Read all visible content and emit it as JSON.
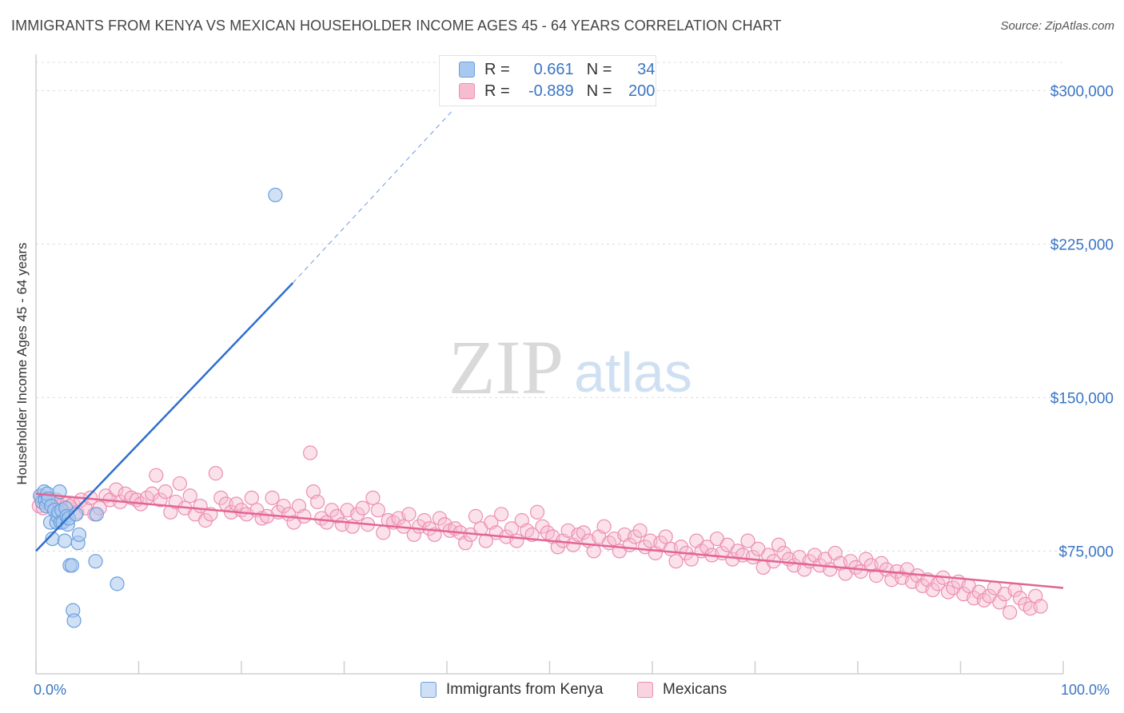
{
  "header": {
    "title": "IMMIGRANTS FROM KENYA VS MEXICAN HOUSEHOLDER INCOME AGES 45 - 64 YEARS CORRELATION CHART",
    "source": "Source: ZipAtlas.com"
  },
  "watermark": {
    "zip": "ZIP",
    "atlas": "atlas"
  },
  "legend": {
    "kenya": {
      "r_label": "R =",
      "r_value": "0.661",
      "n_label": "N =",
      "n_value": "34"
    },
    "mexicans": {
      "r_label": "R =",
      "r_value": "-0.889",
      "n_label": "N =",
      "n_value": "200"
    }
  },
  "colors": {
    "kenya_fill": "#a9c8ef",
    "kenya_stroke": "#6a9fdd",
    "kenya_line": "#2f6fce",
    "mexicans_fill": "#f6bdd0",
    "mexicans_stroke": "#ec8fb0",
    "mexicans_line": "#e36594",
    "axis_text": "#3a75c4"
  },
  "chart_data": {
    "type": "scatter",
    "xlabel": "",
    "ylabel": "Householder Income Ages 45 - 64 years",
    "xlim": [
      0,
      100
    ],
    "ylim": [
      15000,
      315000
    ],
    "x_tick_labels": [
      "0.0%",
      "100.0%"
    ],
    "y_ticks": [
      75000,
      150000,
      225000,
      300000
    ],
    "y_tick_labels": [
      "$75,000",
      "$150,000",
      "$225,000",
      "$300,000"
    ],
    "grid": "horizontal dashed",
    "series": [
      {
        "name": "Immigrants from Kenya",
        "points": [
          [
            0.4,
            102000
          ],
          [
            0.6,
            99000
          ],
          [
            0.8,
            104000
          ],
          [
            0.9,
            100000
          ],
          [
            1.0,
            97000
          ],
          [
            1.1,
            103000
          ],
          [
            1.2,
            100500
          ],
          [
            1.4,
            89000
          ],
          [
            1.5,
            97000
          ],
          [
            1.6,
            81000
          ],
          [
            1.8,
            95000
          ],
          [
            2.0,
            89000
          ],
          [
            2.1,
            92000
          ],
          [
            2.2,
            94000
          ],
          [
            2.3,
            104000
          ],
          [
            2.4,
            89000
          ],
          [
            2.5,
            95000
          ],
          [
            2.6,
            89000
          ],
          [
            2.8,
            80000
          ],
          [
            2.9,
            96000
          ],
          [
            3.0,
            92000
          ],
          [
            3.1,
            88000
          ],
          [
            3.2,
            91000
          ],
          [
            3.3,
            68000
          ],
          [
            3.5,
            68000
          ],
          [
            3.6,
            46000
          ],
          [
            3.7,
            41000
          ],
          [
            3.9,
            93000
          ],
          [
            4.1,
            79000
          ],
          [
            4.2,
            83000
          ],
          [
            5.8,
            70000
          ],
          [
            5.9,
            93000
          ],
          [
            7.9,
            59000
          ],
          [
            23.3,
            249000
          ]
        ],
        "trend": {
          "x0": 0,
          "y0": 75000,
          "x1": 25,
          "y1": 206000
        },
        "trend_dashed": {
          "x0": 25,
          "y0": 206000,
          "x1": 40.5,
          "y1": 290000
        }
      },
      {
        "name": "Mexicans",
        "points": [
          [
            0.3,
            97000
          ],
          [
            0.5,
            101000
          ],
          [
            0.7,
            96000
          ],
          [
            1.5,
            99000
          ],
          [
            2.0,
            100000
          ],
          [
            2.4,
            97000
          ],
          [
            2.7,
            94000
          ],
          [
            3.0,
            98000
          ],
          [
            3.3,
            97000
          ],
          [
            3.6,
            98000
          ],
          [
            4.0,
            94000
          ],
          [
            4.4,
            100000
          ],
          [
            4.8,
            96000
          ],
          [
            5.3,
            101000
          ],
          [
            5.7,
            93000
          ],
          [
            6.2,
            96000
          ],
          [
            6.8,
            102000
          ],
          [
            7.2,
            100000
          ],
          [
            7.8,
            105000
          ],
          [
            8.2,
            99000
          ],
          [
            8.7,
            103000
          ],
          [
            9.3,
            101000
          ],
          [
            9.8,
            100000
          ],
          [
            10.2,
            98000
          ],
          [
            10.8,
            101000
          ],
          [
            11.3,
            103000
          ],
          [
            11.7,
            112000
          ],
          [
            12.1,
            100000
          ],
          [
            12.6,
            104000
          ],
          [
            13.1,
            94000
          ],
          [
            13.6,
            99000
          ],
          [
            14.0,
            108000
          ],
          [
            14.5,
            96000
          ],
          [
            15.0,
            102000
          ],
          [
            15.5,
            93000
          ],
          [
            16.0,
            97000
          ],
          [
            16.5,
            90000
          ],
          [
            17.0,
            93000
          ],
          [
            17.5,
            113000
          ],
          [
            18.0,
            101000
          ],
          [
            18.5,
            98000
          ],
          [
            19.0,
            94000
          ],
          [
            19.5,
            98000
          ],
          [
            20.0,
            95000
          ],
          [
            20.5,
            93000
          ],
          [
            21.0,
            101000
          ],
          [
            21.5,
            95000
          ],
          [
            22.0,
            91000
          ],
          [
            22.5,
            92000
          ],
          [
            23.0,
            101000
          ],
          [
            23.6,
            94000
          ],
          [
            24.1,
            97000
          ],
          [
            24.6,
            93000
          ],
          [
            25.1,
            89000
          ],
          [
            25.6,
            97000
          ],
          [
            26.1,
            92000
          ],
          [
            26.7,
            123000
          ],
          [
            27.0,
            104000
          ],
          [
            27.4,
            99000
          ],
          [
            27.8,
            91000
          ],
          [
            28.3,
            89000
          ],
          [
            28.8,
            95000
          ],
          [
            29.3,
            92000
          ],
          [
            29.8,
            88000
          ],
          [
            30.3,
            95000
          ],
          [
            30.8,
            87000
          ],
          [
            31.3,
            93000
          ],
          [
            31.8,
            96000
          ],
          [
            32.3,
            88000
          ],
          [
            32.8,
            101000
          ],
          [
            33.3,
            95000
          ],
          [
            33.8,
            84000
          ],
          [
            34.3,
            90000
          ],
          [
            34.8,
            89000
          ],
          [
            35.3,
            91000
          ],
          [
            35.8,
            87000
          ],
          [
            36.3,
            93000
          ],
          [
            36.8,
            83000
          ],
          [
            37.3,
            87000
          ],
          [
            37.8,
            90000
          ],
          [
            38.3,
            86000
          ],
          [
            38.8,
            83000
          ],
          [
            39.3,
            91000
          ],
          [
            39.8,
            88000
          ],
          [
            40.3,
            85000
          ],
          [
            40.8,
            86000
          ],
          [
            41.3,
            84000
          ],
          [
            41.8,
            79000
          ],
          [
            42.3,
            83000
          ],
          [
            42.8,
            92000
          ],
          [
            43.3,
            86000
          ],
          [
            43.8,
            80000
          ],
          [
            44.3,
            89000
          ],
          [
            44.8,
            84000
          ],
          [
            45.3,
            93000
          ],
          [
            45.8,
            82000
          ],
          [
            46.3,
            86000
          ],
          [
            46.8,
            80000
          ],
          [
            47.3,
            90000
          ],
          [
            47.8,
            85000
          ],
          [
            48.3,
            83000
          ],
          [
            48.8,
            94000
          ],
          [
            49.3,
            87000
          ],
          [
            49.8,
            84000
          ],
          [
            50.3,
            82000
          ],
          [
            50.8,
            77000
          ],
          [
            51.3,
            80000
          ],
          [
            51.8,
            85000
          ],
          [
            52.3,
            78000
          ],
          [
            52.8,
            83000
          ],
          [
            53.3,
            84000
          ],
          [
            53.8,
            80000
          ],
          [
            54.3,
            75000
          ],
          [
            54.8,
            82000
          ],
          [
            55.3,
            87000
          ],
          [
            55.8,
            79000
          ],
          [
            56.3,
            81000
          ],
          [
            56.8,
            75000
          ],
          [
            57.3,
            83000
          ],
          [
            57.8,
            78000
          ],
          [
            58.3,
            82000
          ],
          [
            58.8,
            85000
          ],
          [
            59.3,
            77000
          ],
          [
            59.8,
            80000
          ],
          [
            60.3,
            74000
          ],
          [
            60.8,
            79000
          ],
          [
            61.3,
            82000
          ],
          [
            61.8,
            76000
          ],
          [
            62.3,
            70000
          ],
          [
            62.8,
            77000
          ],
          [
            63.3,
            74000
          ],
          [
            63.8,
            71000
          ],
          [
            64.3,
            80000
          ],
          [
            64.8,
            75000
          ],
          [
            65.3,
            77000
          ],
          [
            65.8,
            73000
          ],
          [
            66.3,
            81000
          ],
          [
            66.8,
            74000
          ],
          [
            67.3,
            78000
          ],
          [
            67.8,
            71000
          ],
          [
            68.3,
            75000
          ],
          [
            68.8,
            73000
          ],
          [
            69.3,
            80000
          ],
          [
            69.8,
            72000
          ],
          [
            70.3,
            76000
          ],
          [
            70.8,
            67000
          ],
          [
            71.3,
            73000
          ],
          [
            71.8,
            70000
          ],
          [
            72.3,
            78000
          ],
          [
            72.8,
            74000
          ],
          [
            73.3,
            71000
          ],
          [
            73.8,
            68000
          ],
          [
            74.3,
            72000
          ],
          [
            74.8,
            66000
          ],
          [
            75.3,
            70000
          ],
          [
            75.8,
            73000
          ],
          [
            76.3,
            68000
          ],
          [
            76.8,
            71000
          ],
          [
            77.3,
            66000
          ],
          [
            77.8,
            74000
          ],
          [
            78.3,
            69000
          ],
          [
            78.8,
            64000
          ],
          [
            79.3,
            70000
          ],
          [
            79.8,
            67000
          ],
          [
            80.3,
            65000
          ],
          [
            80.8,
            71000
          ],
          [
            81.3,
            68000
          ],
          [
            81.8,
            63000
          ],
          [
            82.3,
            69000
          ],
          [
            82.8,
            66000
          ],
          [
            83.3,
            61000
          ],
          [
            83.8,
            65000
          ],
          [
            84.3,
            62000
          ],
          [
            84.8,
            66000
          ],
          [
            85.3,
            60000
          ],
          [
            85.8,
            63000
          ],
          [
            86.3,
            58000
          ],
          [
            86.8,
            61000
          ],
          [
            87.3,
            56000
          ],
          [
            87.8,
            59000
          ],
          [
            88.3,
            62000
          ],
          [
            88.8,
            55000
          ],
          [
            89.3,
            57000
          ],
          [
            89.8,
            60000
          ],
          [
            90.3,
            54000
          ],
          [
            90.8,
            58000
          ],
          [
            91.3,
            52000
          ],
          [
            91.8,
            55000
          ],
          [
            92.3,
            51000
          ],
          [
            92.8,
            53000
          ],
          [
            93.3,
            57000
          ],
          [
            93.8,
            50000
          ],
          [
            94.3,
            54000
          ],
          [
            94.8,
            45000
          ],
          [
            95.3,
            56000
          ],
          [
            95.8,
            52000
          ],
          [
            96.3,
            49000
          ],
          [
            96.8,
            47000
          ],
          [
            97.3,
            53000
          ],
          [
            97.8,
            48000
          ]
        ],
        "trend": {
          "x0": 0,
          "y0": 103000,
          "x1": 100,
          "y1": 57000
        }
      }
    ]
  },
  "bottom_legend": {
    "kenya_label": "Immigrants from Kenya",
    "mexicans_label": "Mexicans"
  }
}
